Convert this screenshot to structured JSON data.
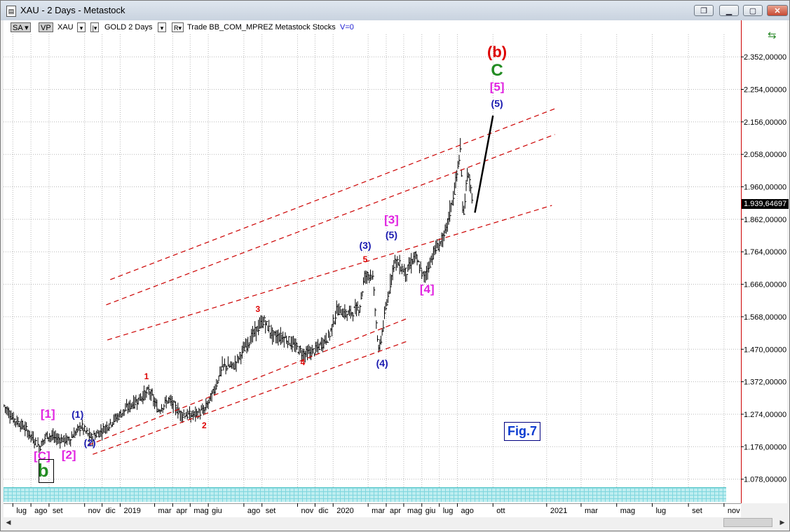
{
  "window": {
    "title": "XAU - 2 Days - Metastock",
    "icon": "document-icon",
    "buttons": [
      "restore-icon",
      "minimize-icon",
      "maximize-icon",
      "close-icon"
    ]
  },
  "toolbar": {
    "sa": "SA",
    "vp": "VP",
    "symbol": "XAU",
    "name": "GOLD 2 Days",
    "r_button": "R",
    "info": "Trade  BB_COM_MPREZ  Metastock  Stocks",
    "v_value": "V=0"
  },
  "chart_data": {
    "type": "ohlc",
    "y_ticks": [
      "2.352,00000",
      "2.254,00000",
      "2.156,00000",
      "2.058,00000",
      "1.960,00000",
      "1.862,00000",
      "1.764,00000",
      "1.666,00000",
      "1.568,00000",
      "1.470,00000",
      "1.372,00000",
      "1.274,00000",
      "1.176,00000",
      "1.078,00000"
    ],
    "y_range": [
      1054,
      2420
    ],
    "current_price": "1.939,64697",
    "x_range": [
      "2018-06-15",
      "2021-11-30"
    ],
    "x_ticks": [
      {
        "label": "lug",
        "date": "2018-07-01"
      },
      {
        "label": "ago",
        "date": "2018-08-01"
      },
      {
        "label": "set",
        "date": "2018-09-01"
      },
      {
        "label": "nov",
        "date": "2018-11-01"
      },
      {
        "label": "dic",
        "date": "2018-12-01"
      },
      {
        "label": "2019",
        "date": "2019-01-01"
      },
      {
        "label": "mar",
        "date": "2019-03-01"
      },
      {
        "label": "apr",
        "date": "2019-04-01"
      },
      {
        "label": "mag",
        "date": "2019-05-01"
      },
      {
        "label": "giu",
        "date": "2019-06-01"
      },
      {
        "label": "ago",
        "date": "2019-08-01"
      },
      {
        "label": "set",
        "date": "2019-09-01"
      },
      {
        "label": "nov",
        "date": "2019-11-01"
      },
      {
        "label": "dic",
        "date": "2019-12-01"
      },
      {
        "label": "2020",
        "date": "2020-01-01"
      },
      {
        "label": "mar",
        "date": "2020-03-01"
      },
      {
        "label": "apr",
        "date": "2020-04-01"
      },
      {
        "label": "mag",
        "date": "2020-05-01"
      },
      {
        "label": "giu",
        "date": "2020-06-01"
      },
      {
        "label": "lug",
        "date": "2020-07-01"
      },
      {
        "label": "ago",
        "date": "2020-08-01"
      },
      {
        "label": "ott",
        "date": "2020-10-01"
      },
      {
        "label": "2021",
        "date": "2021-01-01"
      },
      {
        "label": "mar",
        "date": "2021-03-01"
      },
      {
        "label": "mag",
        "date": "2021-05-01"
      },
      {
        "label": "lug",
        "date": "2021-07-01"
      },
      {
        "label": "set",
        "date": "2021-09-01"
      },
      {
        "label": "nov",
        "date": "2021-11-01"
      }
    ],
    "price_path": [
      [
        "2018-06-16",
        1300
      ],
      [
        "2018-07-01",
        1262
      ],
      [
        "2018-07-20",
        1235
      ],
      [
        "2018-08-16",
        1175
      ],
      [
        "2018-08-28",
        1212
      ],
      [
        "2018-09-15",
        1200
      ],
      [
        "2018-10-05",
        1195
      ],
      [
        "2018-10-26",
        1238
      ],
      [
        "2018-11-12",
        1202
      ],
      [
        "2018-12-01",
        1225
      ],
      [
        "2018-12-20",
        1255
      ],
      [
        "2019-01-10",
        1288
      ],
      [
        "2019-02-20",
        1345
      ],
      [
        "2019-03-07",
        1285
      ],
      [
        "2019-03-25",
        1318
      ],
      [
        "2019-04-15",
        1275
      ],
      [
        "2019-05-03",
        1270
      ],
      [
        "2019-05-25",
        1285
      ],
      [
        "2019-06-10",
        1340
      ],
      [
        "2019-06-25",
        1418
      ],
      [
        "2019-07-15",
        1420
      ],
      [
        "2019-08-15",
        1510
      ],
      [
        "2019-09-04",
        1557
      ],
      [
        "2019-09-20",
        1510
      ],
      [
        "2019-10-10",
        1505
      ],
      [
        "2019-11-12",
        1455
      ],
      [
        "2019-12-01",
        1465
      ],
      [
        "2019-12-25",
        1510
      ],
      [
        "2020-01-08",
        1590
      ],
      [
        "2020-01-25",
        1575
      ],
      [
        "2020-02-15",
        1595
      ],
      [
        "2020-02-24",
        1690
      ],
      [
        "2020-03-08",
        1700
      ],
      [
        "2020-03-19",
        1460
      ],
      [
        "2020-04-06",
        1650
      ],
      [
        "2020-04-15",
        1740
      ],
      [
        "2020-05-05",
        1700
      ],
      [
        "2020-05-20",
        1750
      ],
      [
        "2020-06-05",
        1685
      ],
      [
        "2020-06-22",
        1765
      ],
      [
        "2020-07-10",
        1810
      ],
      [
        "2020-07-27",
        1950
      ],
      [
        "2020-08-06",
        2070
      ],
      [
        "2020-08-11",
        1865
      ],
      [
        "2020-08-18",
        2005
      ],
      [
        "2020-08-26",
        1930
      ]
    ],
    "series": [
      {
        "color": "#cc0000",
        "style": "dashed",
        "from": [
          "2018-11-15",
          1153
        ],
        "to": [
          "2020-05-10",
          1496
        ]
      },
      {
        "color": "#cc0000",
        "style": "dashed",
        "from": [
          "2018-11-08",
          1181
        ],
        "to": [
          "2020-05-10",
          1565
        ]
      },
      {
        "color": "#cc0000",
        "style": "dashed",
        "from": [
          "2018-12-10",
          1498
        ],
        "to": [
          "2021-01-10",
          1904
        ]
      },
      {
        "color": "#cc0000",
        "style": "dashed",
        "from": [
          "2018-12-08",
          1604
        ],
        "to": [
          "2021-01-15",
          2118
        ]
      },
      {
        "color": "#cc0000",
        "style": "dashed",
        "from": [
          "2018-12-15",
          1680
        ],
        "to": [
          "2021-01-20",
          2199
        ]
      },
      {
        "color": "#000000",
        "style": "solid",
        "from": [
          "2020-08-31",
          1882
        ],
        "to": [
          "2020-10-01",
          2175
        ]
      }
    ],
    "annotations": [
      {
        "text": "(b)",
        "color": "#dd0000",
        "size": 22,
        "date": "2020-10-08",
        "price": 2351
      },
      {
        "text": "C",
        "color": "#228b22",
        "size": 24,
        "date": "2020-10-08",
        "price": 2295
      },
      {
        "text": "[5]",
        "color": "#e024e0",
        "size": 17,
        "date": "2020-10-08",
        "price": 2250
      },
      {
        "text": "(5)",
        "color": "#1a1ab0",
        "size": 14,
        "date": "2020-10-08",
        "price": 2201
      },
      {
        "text": "[3]",
        "color": "#e024e0",
        "size": 17,
        "date": "2020-04-10",
        "price": 1849
      },
      {
        "text": "(5)",
        "color": "#1a1ab0",
        "size": 14,
        "date": "2020-04-10",
        "price": 1805
      },
      {
        "text": "(3)",
        "color": "#1a1ab0",
        "size": 14,
        "date": "2020-02-25",
        "price": 1773
      },
      {
        "text": "5",
        "color": "#dd0000",
        "size": 12,
        "date": "2020-02-25",
        "price": 1733
      },
      {
        "text": "[4]",
        "color": "#e024e0",
        "size": 17,
        "date": "2020-06-10",
        "price": 1640
      },
      {
        "text": "3",
        "color": "#dd0000",
        "size": 12,
        "date": "2019-08-25",
        "price": 1583
      },
      {
        "text": "4",
        "color": "#dd0000",
        "size": 12,
        "date": "2019-11-10",
        "price": 1422
      },
      {
        "text": "(4)",
        "color": "#1a1ab0",
        "size": 14,
        "date": "2020-03-25",
        "price": 1418
      },
      {
        "text": "1",
        "color": "#dd0000",
        "size": 12,
        "date": "2019-02-15",
        "price": 1380
      },
      {
        "text": "2",
        "color": "#dd0000",
        "size": 12,
        "date": "2019-05-25",
        "price": 1232
      },
      {
        "text": "[1]",
        "color": "#e024e0",
        "size": 17,
        "date": "2018-08-30",
        "price": 1263
      },
      {
        "text": "(1)",
        "color": "#1a1ab0",
        "size": 14,
        "date": "2018-10-20",
        "price": 1263
      },
      {
        "text": "(2)",
        "color": "#1a1ab0",
        "size": 14,
        "date": "2018-11-10",
        "price": 1178
      },
      {
        "text": "[C]",
        "color": "#e024e0",
        "size": 17,
        "date": "2018-08-20",
        "price": 1136
      },
      {
        "text": "[2]",
        "color": "#e024e0",
        "size": 17,
        "date": "2018-10-05",
        "price": 1140
      },
      {
        "text": "b",
        "color": "#228b22",
        "size": 26,
        "date": "2018-08-22",
        "price": 1086
      }
    ],
    "figure_label": "Fig.7",
    "grid": true
  }
}
